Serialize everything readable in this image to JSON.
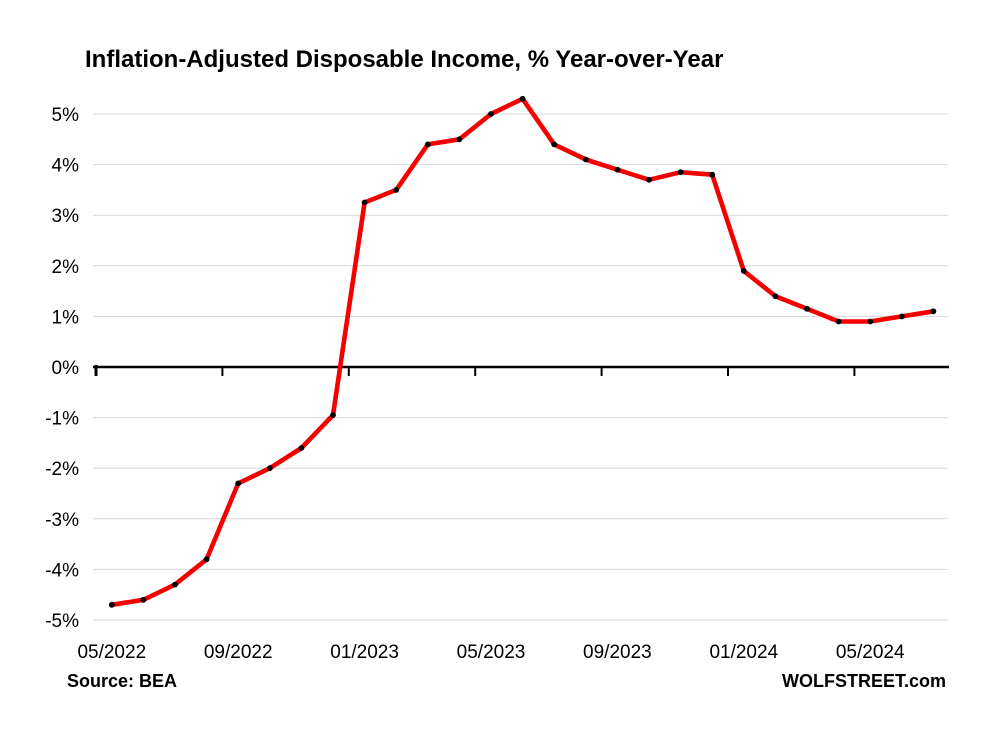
{
  "title": "Inflation-Adjusted Disposable Income, % Year-over-Year",
  "footer": {
    "source": "Source: BEA",
    "watermark": "WOLFSTREET.com"
  },
  "chart_data": {
    "type": "line",
    "title": "Inflation-Adjusted Disposable Income, % Year-over-Year",
    "x": [
      "05/2022",
      "06/2022",
      "07/2022",
      "08/2022",
      "09/2022",
      "10/2022",
      "11/2022",
      "12/2022",
      "01/2023",
      "02/2023",
      "03/2023",
      "04/2023",
      "05/2023",
      "06/2023",
      "07/2023",
      "08/2023",
      "09/2023",
      "10/2023",
      "11/2023",
      "12/2023",
      "01/2024",
      "02/2024",
      "03/2024",
      "04/2024",
      "05/2024",
      "06/2024",
      "07/2024"
    ],
    "values": [
      -4.7,
      -4.6,
      -4.3,
      -3.8,
      -2.3,
      -2.0,
      -1.6,
      -0.95,
      3.25,
      3.5,
      4.4,
      4.5,
      5.0,
      5.3,
      4.4,
      4.1,
      3.9,
      3.7,
      3.85,
      3.8,
      1.9,
      1.4,
      1.15,
      0.9,
      0.9,
      1.0,
      1.1
    ],
    "x_tick_every": 4,
    "x_tick_labels": [
      "05/2022",
      "09/2022",
      "01/2023",
      "05/2023",
      "09/2023",
      "01/2024",
      "05/2024"
    ],
    "y_ticks": [
      5,
      4,
      3,
      2,
      1,
      0,
      -1,
      -2,
      -3,
      -4,
      -5
    ],
    "y_tick_suffix": "%",
    "ylim": [
      -5.5,
      5.5
    ],
    "grid": "horizontal",
    "legend": "none",
    "line_color": "#f40000",
    "marker_color": "#000000",
    "gridline_color": "#d9d9d9",
    "zero_axis_color": "#000000",
    "text_color": "#000000"
  }
}
